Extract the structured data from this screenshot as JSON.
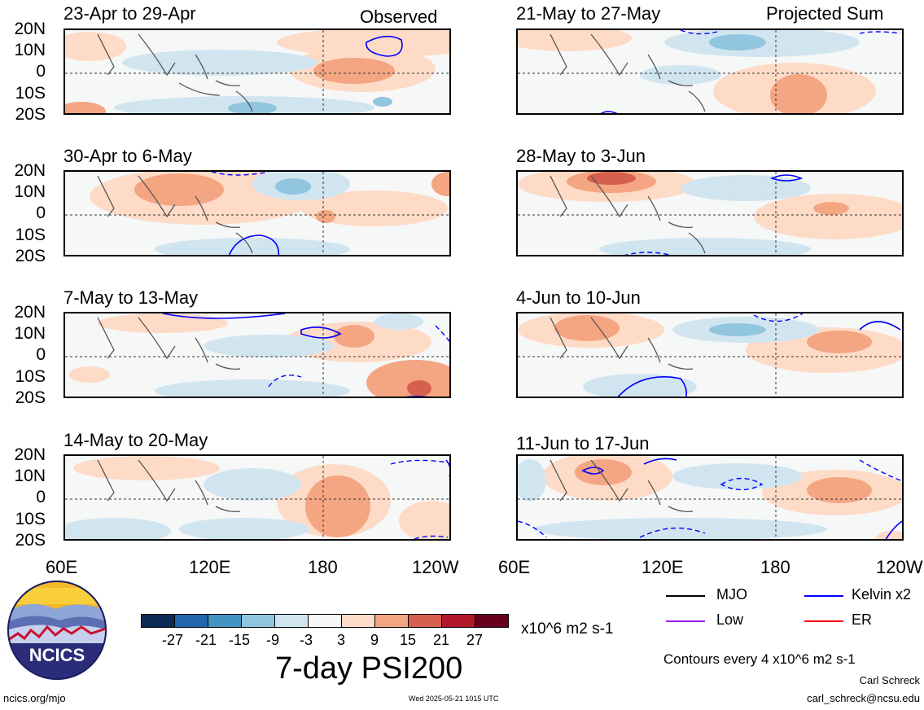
{
  "panels_left": [
    {
      "title": "23-Apr to 29-Apr",
      "tag": "Observed"
    },
    {
      "title": "30-Apr to 6-May",
      "tag": ""
    },
    {
      "title": "7-May to 13-May",
      "tag": ""
    },
    {
      "title": "14-May to 20-May",
      "tag": ""
    }
  ],
  "panels_right": [
    {
      "title": "21-May to 27-May",
      "tag": "Projected Sum"
    },
    {
      "title": "28-May to 3-Jun",
      "tag": ""
    },
    {
      "title": "4-Jun to 10-Jun",
      "tag": ""
    },
    {
      "title": "11-Jun to 17-Jun",
      "tag": ""
    }
  ],
  "lat_labels": [
    "20N",
    "10N",
    "0",
    "10S",
    "20S"
  ],
  "lon_labels": [
    "60E",
    "120E",
    "180",
    "120W"
  ],
  "legend": {
    "mjo": "MJO",
    "kelvin": "Kelvin x2",
    "low": "Low",
    "er": "ER",
    "colors": {
      "mjo": "#000000",
      "kelvin": "#0000ff",
      "low": "#a020f0",
      "er": "#ff0000"
    }
  },
  "colorbar": {
    "labels": [
      "-27",
      "-21",
      "-15",
      "-9",
      "-3",
      "3",
      "9",
      "15",
      "21",
      "27"
    ],
    "colors": [
      "#0b2a55",
      "#2166ac",
      "#4393c3",
      "#92c5de",
      "#d1e5f0",
      "#f7f7f7",
      "#fddbc7",
      "#f4a582",
      "#d6604d",
      "#b2182b",
      "#67001f"
    ],
    "units": "x10^6 m2 s-1",
    "title": "7-day PSI200"
  },
  "contour_note": "Contours every 4 x10^6 m2 s-1",
  "logo_text": "NCICS",
  "footer": {
    "url": "ncics.org/mjo",
    "timestamp": "Wed 2025-05-21 1015 UTC",
    "author": "Carl Schreck",
    "email": "carl_schreck@ncsu.edu"
  }
}
